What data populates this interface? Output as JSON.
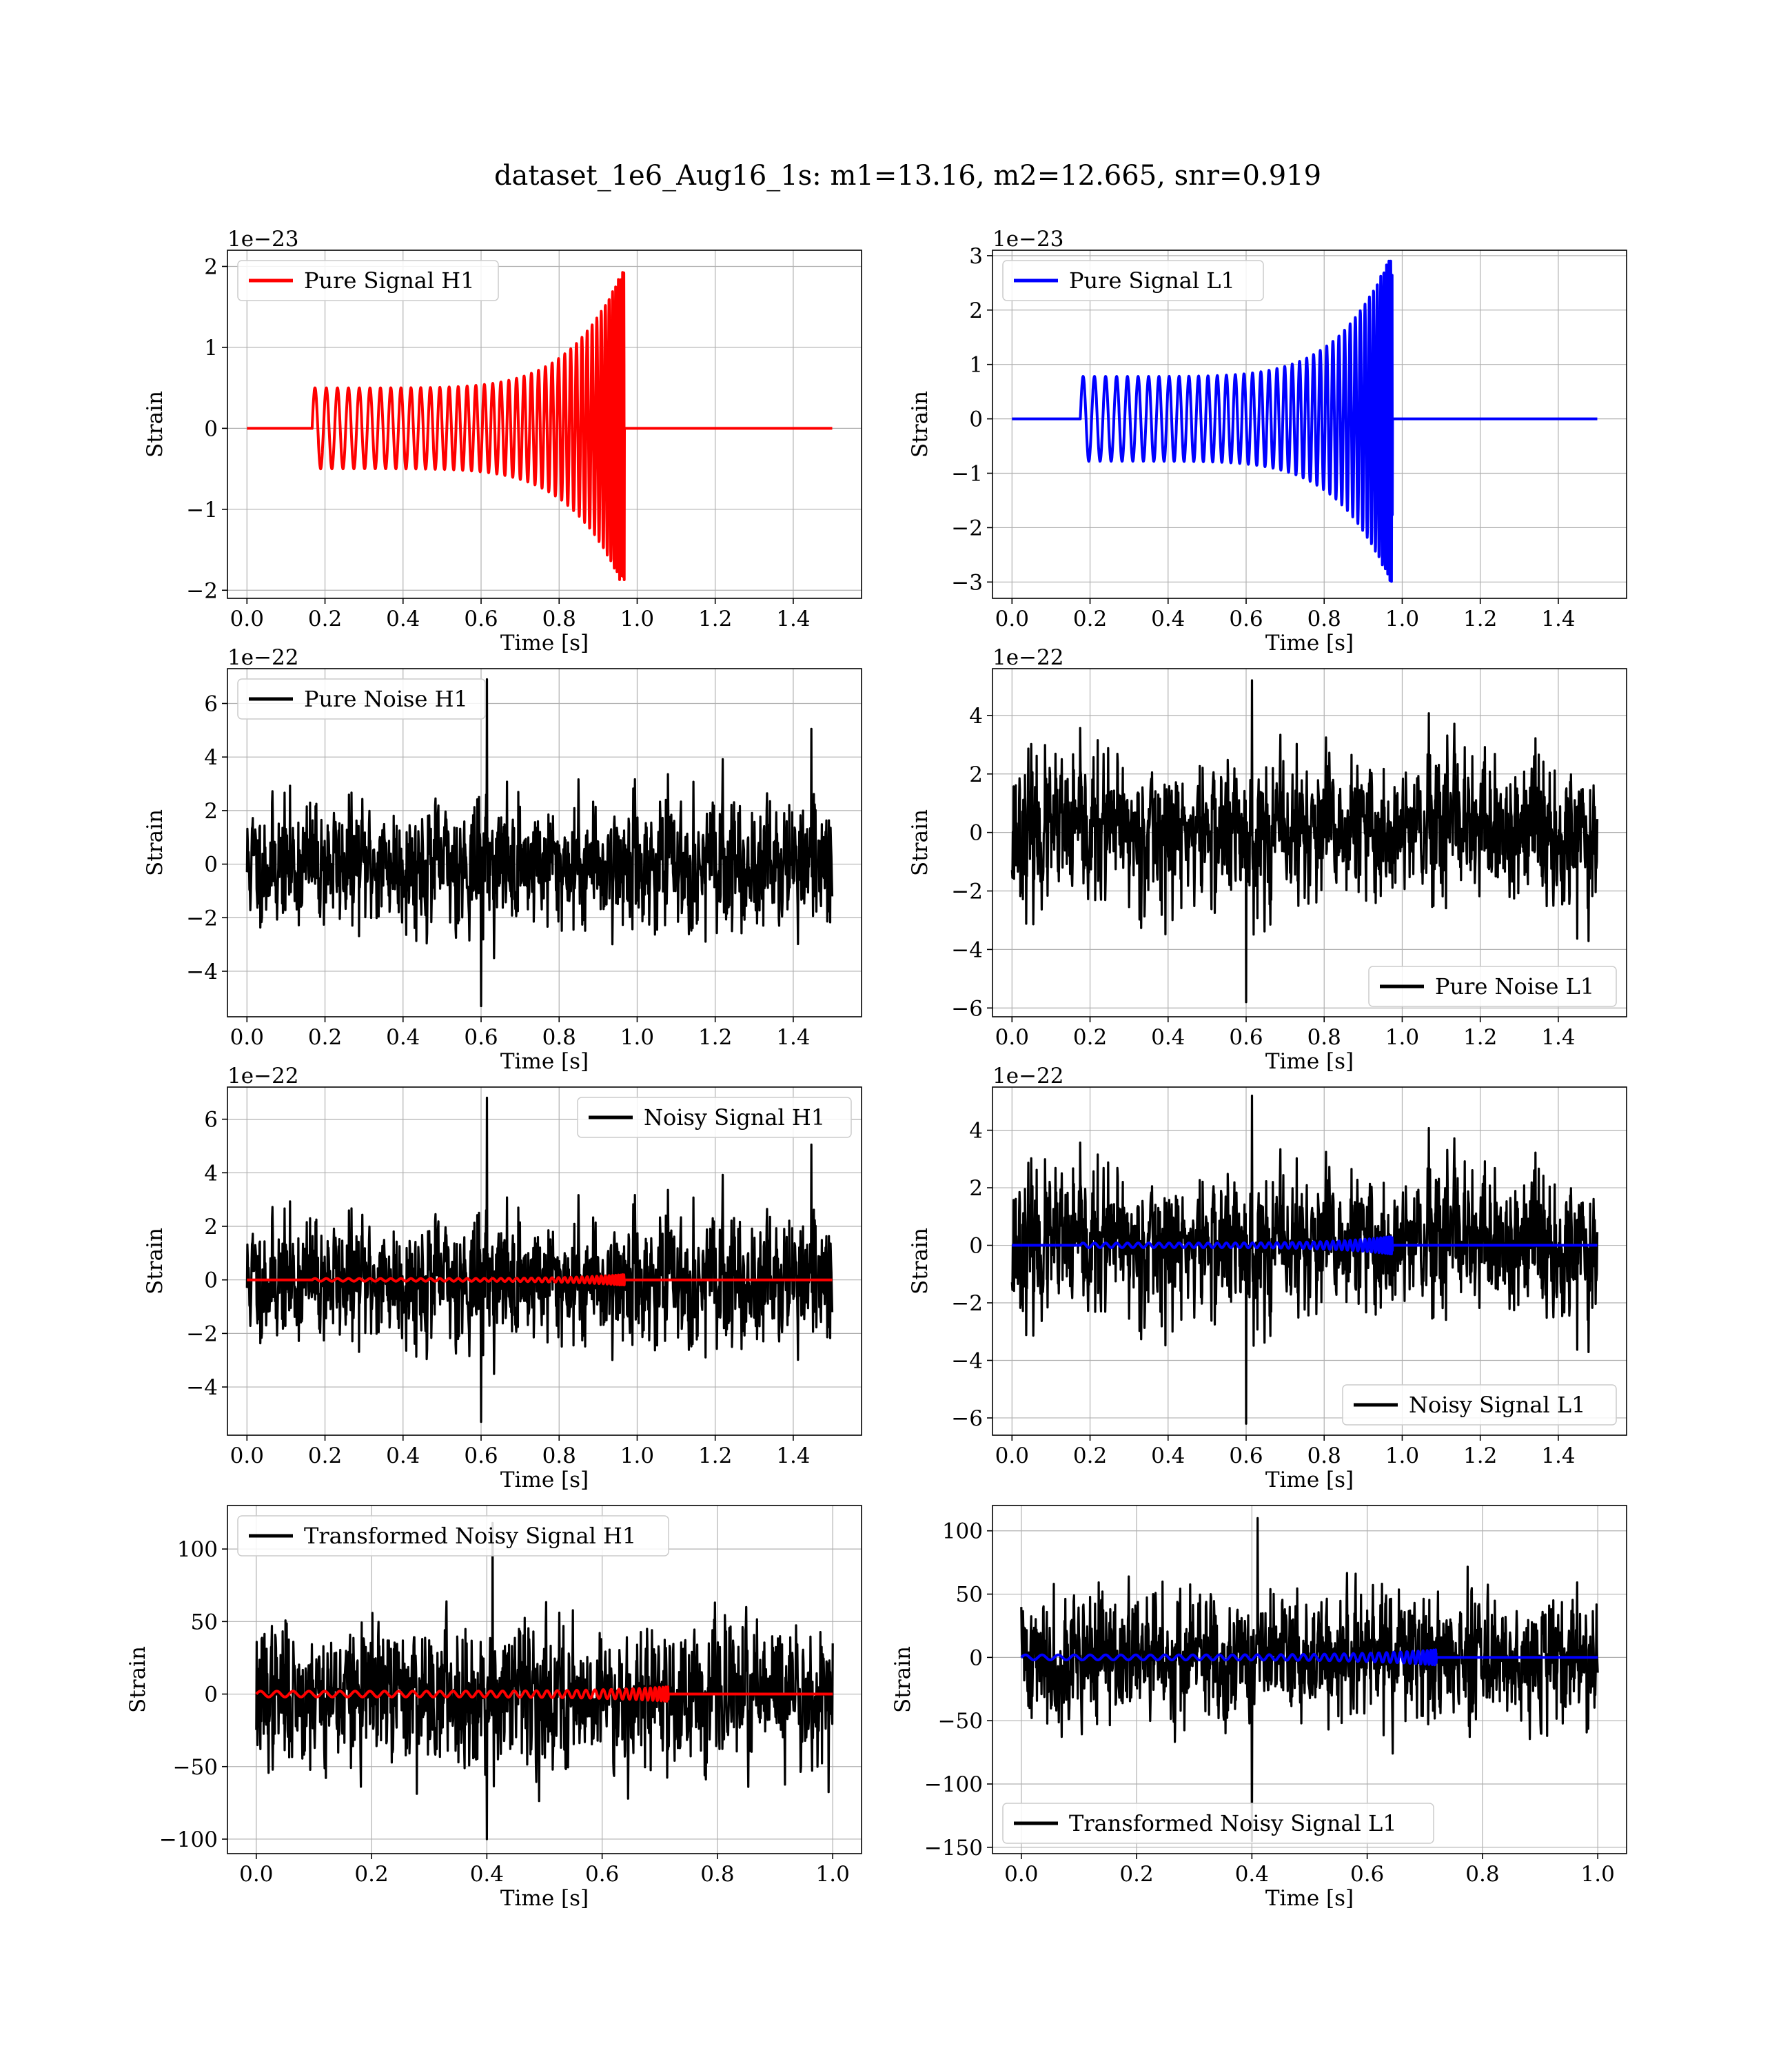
{
  "figure": {
    "title": "dataset_1e6_Aug16_1s: m1=13.16, m2=12.665, snr=0.919"
  },
  "chart_data": [
    {
      "type": "line",
      "detector": "H1",
      "kind": "pure_signal",
      "xlabel": "Time [s]",
      "ylabel": "Strain",
      "offset_text": "1e−23",
      "xlim": [
        -0.05,
        1.575
      ],
      "ylim": [
        -2.1,
        2.2
      ],
      "xticks": [
        0.0,
        0.2,
        0.4,
        0.6,
        0.8,
        1.0,
        1.2,
        1.4
      ],
      "xtick_labels": [
        "0.0",
        "0.2",
        "0.4",
        "0.6",
        "0.8",
        "1.0",
        "1.2",
        "1.4"
      ],
      "yticks": [
        -2,
        -1,
        0,
        1,
        2
      ],
      "ytick_labels": [
        "−2",
        "−1",
        "0",
        "1",
        "2"
      ],
      "grid": true,
      "legend_position": "upper-left",
      "series": [
        {
          "name": "Pure Signal H1",
          "color": "#ff0000",
          "role": "chirp",
          "t_start": 0.167,
          "t_merger": 0.967,
          "t_end": 1.5,
          "amp_start": 0.5,
          "peak_pos": 2.0,
          "peak_neg": -1.87,
          "cycles": 44
        }
      ]
    },
    {
      "type": "line",
      "detector": "L1",
      "kind": "pure_signal",
      "xlabel": "Time [s]",
      "ylabel": "Strain",
      "offset_text": "1e−23",
      "xlim": [
        -0.05,
        1.575
      ],
      "ylim": [
        -3.3,
        3.1
      ],
      "xticks": [
        0.0,
        0.2,
        0.4,
        0.6,
        0.8,
        1.0,
        1.2,
        1.4
      ],
      "xtick_labels": [
        "0.0",
        "0.2",
        "0.4",
        "0.6",
        "0.8",
        "1.0",
        "1.2",
        "1.4"
      ],
      "yticks": [
        -3,
        -2,
        -1,
        0,
        1,
        2,
        3
      ],
      "ytick_labels": [
        "−3",
        "−2",
        "−1",
        "0",
        "1",
        "2",
        "3"
      ],
      "grid": true,
      "legend_position": "upper-left",
      "series": [
        {
          "name": "Pure Signal L1",
          "color": "#0000ff",
          "role": "chirp",
          "t_start": 0.175,
          "t_merger": 0.975,
          "t_end": 1.5,
          "amp_start": 0.78,
          "peak_pos": 2.9,
          "peak_neg": -3.1,
          "cycles": 44
        }
      ]
    },
    {
      "type": "line",
      "detector": "H1",
      "kind": "pure_noise",
      "xlabel": "Time [s]",
      "ylabel": "Strain",
      "offset_text": "1e−22",
      "xlim": [
        -0.05,
        1.575
      ],
      "ylim": [
        -5.7,
        7.3
      ],
      "xticks": [
        0.0,
        0.2,
        0.4,
        0.6,
        0.8,
        1.0,
        1.2,
        1.4
      ],
      "xtick_labels": [
        "0.0",
        "0.2",
        "0.4",
        "0.6",
        "0.8",
        "1.0",
        "1.2",
        "1.4"
      ],
      "yticks": [
        -4,
        -2,
        0,
        2,
        4,
        6
      ],
      "ytick_labels": [
        "−4",
        "−2",
        "0",
        "2",
        "4",
        "6"
      ],
      "grid": true,
      "legend_position": "upper-left",
      "series": [
        {
          "name": "Pure Noise H1",
          "color": "#000000",
          "role": "noise",
          "t_end": 1.5,
          "sigma": 1.35,
          "max": 6.9,
          "min": -5.3,
          "seed": 11
        }
      ]
    },
    {
      "type": "line",
      "detector": "L1",
      "kind": "pure_noise",
      "xlabel": "Time [s]",
      "ylabel": "Strain",
      "offset_text": "1e−22",
      "xlim": [
        -0.05,
        1.575
      ],
      "ylim": [
        -6.3,
        5.6
      ],
      "xticks": [
        0.0,
        0.2,
        0.4,
        0.6,
        0.8,
        1.0,
        1.2,
        1.4
      ],
      "xtick_labels": [
        "0.0",
        "0.2",
        "0.4",
        "0.6",
        "0.8",
        "1.0",
        "1.2",
        "1.4"
      ],
      "yticks": [
        -6,
        -4,
        -2,
        0,
        2,
        4
      ],
      "ytick_labels": [
        "−6",
        "−4",
        "−2",
        "0",
        "2",
        "4"
      ],
      "grid": true,
      "legend_position": "lower-right",
      "series": [
        {
          "name": "Pure Noise L1",
          "color": "#000000",
          "role": "noise",
          "t_end": 1.5,
          "sigma": 1.45,
          "max": 5.2,
          "min": -5.8,
          "seed": 23
        }
      ]
    },
    {
      "type": "line",
      "detector": "H1",
      "kind": "noisy_signal",
      "xlabel": "Time [s]",
      "ylabel": "Strain",
      "offset_text": "1e−22",
      "xlim": [
        -0.05,
        1.575
      ],
      "ylim": [
        -5.8,
        7.2
      ],
      "xticks": [
        0.0,
        0.2,
        0.4,
        0.6,
        0.8,
        1.0,
        1.2,
        1.4
      ],
      "xtick_labels": [
        "0.0",
        "0.2",
        "0.4",
        "0.6",
        "0.8",
        "1.0",
        "1.2",
        "1.4"
      ],
      "yticks": [
        -4,
        -2,
        0,
        2,
        4,
        6
      ],
      "ytick_labels": [
        "−4",
        "−2",
        "0",
        "2",
        "4",
        "6"
      ],
      "grid": true,
      "legend_position": "upper-right",
      "series": [
        {
          "name": "Noisy Signal H1",
          "color": "#000000",
          "role": "noise",
          "t_end": 1.5,
          "sigma": 1.35,
          "max": 6.8,
          "min": -5.3,
          "seed": 11
        },
        {
          "name": "",
          "color": "#ff0000",
          "role": "chirp_overlay",
          "t_start": 0.167,
          "t_merger": 0.967,
          "t_end": 1.5,
          "amp_start": 0.05,
          "peak_pos": 0.2,
          "peak_neg": -0.19,
          "cycles": 44
        }
      ]
    },
    {
      "type": "line",
      "detector": "L1",
      "kind": "noisy_signal",
      "xlabel": "Time [s]",
      "ylabel": "Strain",
      "offset_text": "1e−22",
      "xlim": [
        -0.05,
        1.575
      ],
      "ylim": [
        -6.6,
        5.5
      ],
      "xticks": [
        0.0,
        0.2,
        0.4,
        0.6,
        0.8,
        1.0,
        1.2,
        1.4
      ],
      "xtick_labels": [
        "0.0",
        "0.2",
        "0.4",
        "0.6",
        "0.8",
        "1.0",
        "1.2",
        "1.4"
      ],
      "yticks": [
        -6,
        -4,
        -2,
        0,
        2,
        4
      ],
      "ytick_labels": [
        "−6",
        "−4",
        "−2",
        "0",
        "2",
        "4"
      ],
      "grid": true,
      "legend_position": "lower-right",
      "series": [
        {
          "name": "Noisy Signal L1",
          "color": "#000000",
          "role": "noise",
          "t_end": 1.5,
          "sigma": 1.45,
          "max": 5.2,
          "min": -6.2,
          "seed": 23
        },
        {
          "name": "",
          "color": "#0000ff",
          "role": "chirp_overlay",
          "t_start": 0.175,
          "t_merger": 0.975,
          "t_end": 1.5,
          "amp_start": 0.08,
          "peak_pos": 0.29,
          "peak_neg": -0.31,
          "cycles": 44
        }
      ]
    },
    {
      "type": "line",
      "detector": "H1",
      "kind": "transformed_noisy_signal",
      "xlabel": "Time [s]",
      "ylabel": "Strain",
      "offset_text": "",
      "xlim": [
        -0.05,
        1.05
      ],
      "ylim": [
        -110,
        130
      ],
      "xticks": [
        0.0,
        0.2,
        0.4,
        0.6,
        0.8,
        1.0
      ],
      "xtick_labels": [
        "0.0",
        "0.2",
        "0.4",
        "0.6",
        "0.8",
        "1.0"
      ],
      "yticks": [
        -100,
        -50,
        0,
        50,
        100
      ],
      "ytick_labels": [
        "−100",
        "−50",
        "0",
        "50",
        "100"
      ],
      "grid": true,
      "legend_position": "upper-left",
      "series": [
        {
          "name": "Transformed Noisy Signal H1",
          "color": "#000000",
          "role": "noise",
          "t_end": 1.0,
          "sigma": 28,
          "max": 118,
          "min": -100,
          "seed": 37
        },
        {
          "name": "",
          "color": "#ff0000",
          "role": "chirp_overlay",
          "t_start": 0.0,
          "t_merger": 0.715,
          "t_end": 1.0,
          "amp_start": 2,
          "peak_pos": 5,
          "peak_neg": -5,
          "cycles": 40
        }
      ]
    },
    {
      "type": "line",
      "detector": "L1",
      "kind": "transformed_noisy_signal",
      "xlabel": "Time [s]",
      "ylabel": "Strain",
      "offset_text": "",
      "xlim": [
        -0.05,
        1.05
      ],
      "ylim": [
        -155,
        120
      ],
      "xticks": [
        0.0,
        0.2,
        0.4,
        0.6,
        0.8,
        1.0
      ],
      "xtick_labels": [
        "0.0",
        "0.2",
        "0.4",
        "0.6",
        "0.8",
        "1.0"
      ],
      "yticks": [
        -150,
        -100,
        -50,
        0,
        50,
        100
      ],
      "ytick_labels": [
        "−150",
        "−100",
        "−50",
        "0",
        "50",
        "100"
      ],
      "grid": true,
      "legend_position": "lower-left",
      "series": [
        {
          "name": "Transformed Noisy Signal L1",
          "color": "#000000",
          "role": "noise",
          "t_end": 1.0,
          "sigma": 30,
          "max": 110,
          "min": -145,
          "seed": 41
        },
        {
          "name": "",
          "color": "#0000ff",
          "role": "chirp_overlay",
          "t_start": 0.0,
          "t_merger": 0.72,
          "t_end": 1.0,
          "amp_start": 2,
          "peak_pos": 6,
          "peak_neg": -6,
          "cycles": 40
        }
      ]
    }
  ]
}
